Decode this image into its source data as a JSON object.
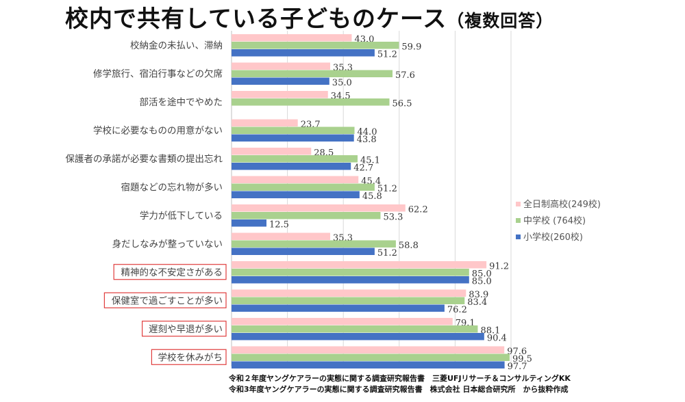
{
  "chart_data": {
    "type": "bar",
    "orientation": "horizontal",
    "title": "校内で共有している子どものケース",
    "title_suffix": "（複数回答）",
    "categories": [
      "校納金の未払い、滞納",
      "修学旅行、宿泊行事などの欠席",
      "部活を途中でやめた",
      "学校に必要なものの用意がない",
      "保護者の承諾が必要な書類の提出忘れ",
      "宿題などの忘れ物が多い",
      "学力が低下している",
      "身だしなみが整っていない",
      "精神的な不安定さがある",
      "保健室で過ごすことが多い",
      "遅刻や早退が多い",
      "学校を休みがち"
    ],
    "highlighted": [
      false,
      false,
      false,
      false,
      false,
      false,
      false,
      false,
      true,
      true,
      true,
      true
    ],
    "series": [
      {
        "name": "全日制高校(249校)",
        "color": "#ffc7c9",
        "values": [
          43.0,
          35.3,
          34.5,
          23.7,
          28.5,
          45.4,
          62.2,
          35.3,
          91.2,
          83.9,
          79.1,
          97.6
        ]
      },
      {
        "name": "中学校 (764校)",
        "color": "#a9d18e",
        "values": [
          59.9,
          57.6,
          56.5,
          44.0,
          45.1,
          51.2,
          53.3,
          58.8,
          85.0,
          83.4,
          88.1,
          99.5
        ]
      },
      {
        "name": "小学校(260校)",
        "color": "#4472c4",
        "values": [
          51.2,
          35.0,
          null,
          43.8,
          42.7,
          45.8,
          12.5,
          51.2,
          85.0,
          76.2,
          90.4,
          97.7
        ]
      }
    ],
    "xlim": [
      0,
      100
    ],
    "grid": true,
    "legend_position": "right",
    "xlabel": "",
    "ylabel": ""
  },
  "source": [
    "令和２年度ヤングケアラーの実態に関する調査研究報告書　三菱UFJリサーチ＆コンサルティングKK",
    "令和3年度ヤングケアラーの実態に関する調査研究報告書　株式会社 日本総合研究所　から抜粋作成"
  ]
}
